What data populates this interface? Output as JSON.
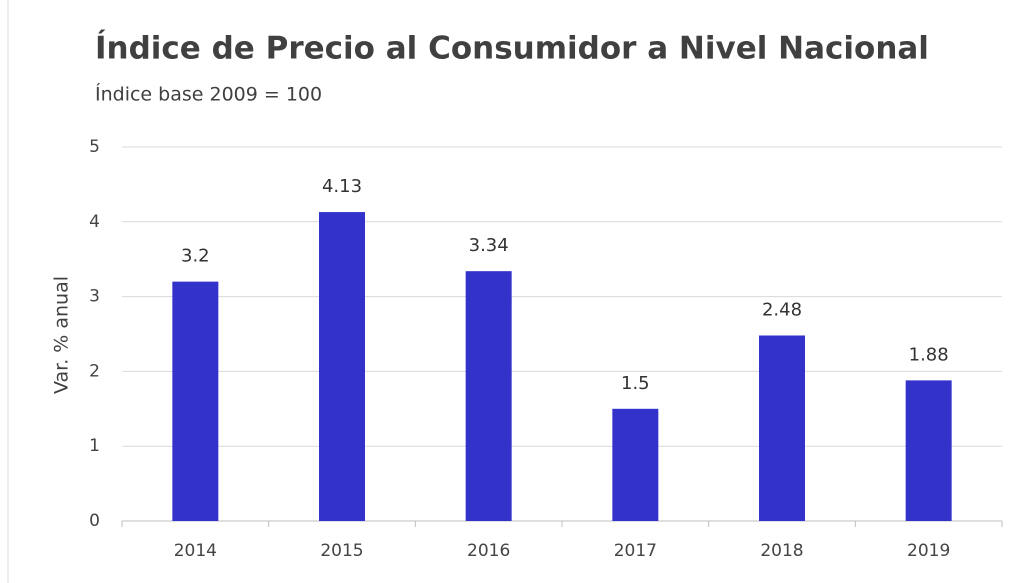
{
  "chart_data": {
    "type": "bar",
    "title": "Índice de Precio al Consumidor a Nivel Nacional",
    "subtitle": "Índice base 2009 = 100",
    "y_label": "Var. % anual",
    "categories": [
      "2014",
      "2015",
      "2016",
      "2017",
      "2018",
      "2019"
    ],
    "values": [
      3.2,
      4.13,
      3.34,
      1.5,
      2.48,
      1.88
    ],
    "color": "#3333cc",
    "ylim": [
      0,
      5
    ],
    "yticks": [
      0,
      1,
      2,
      3,
      4,
      5
    ],
    "grid": true
  }
}
